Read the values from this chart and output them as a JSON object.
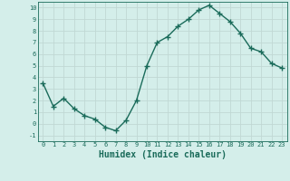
{
  "x": [
    0,
    1,
    2,
    3,
    4,
    5,
    6,
    7,
    8,
    9,
    10,
    11,
    12,
    13,
    14,
    15,
    16,
    17,
    18,
    19,
    20,
    21,
    22,
    23
  ],
  "y": [
    3.5,
    1.5,
    2.2,
    1.3,
    0.7,
    0.4,
    -0.3,
    -0.6,
    0.3,
    2.0,
    5.0,
    7.0,
    7.5,
    8.4,
    9.0,
    9.8,
    10.2,
    9.5,
    8.8,
    7.8,
    6.5,
    6.2,
    5.2,
    4.8
  ],
  "line_color": "#1a6b5a",
  "marker": "+",
  "markersize": 4,
  "linewidth": 1.0,
  "bg_color": "#d4eeea",
  "grid_color": "#c0d8d4",
  "xlabel": "Humidex (Indice chaleur)",
  "xlabel_fontsize": 7,
  "tick_fontsize": 5,
  "xtick_labels": [
    "0",
    "1",
    "2",
    "3",
    "4",
    "5",
    "6",
    "7",
    "8",
    "9",
    "10",
    "11",
    "12",
    "13",
    "14",
    "15",
    "16",
    "17",
    "18",
    "19",
    "20",
    "21",
    "22",
    "23"
  ],
  "ytick_min": -1,
  "ytick_max": 10,
  "ytick_step": 1,
  "xlim": [
    -0.5,
    23.5
  ],
  "ylim": [
    -1.5,
    10.5
  ]
}
